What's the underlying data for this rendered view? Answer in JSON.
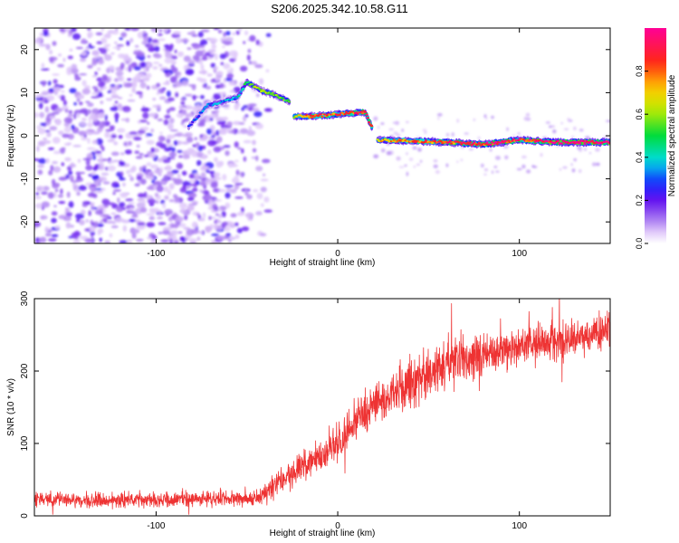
{
  "title": "S206.2025.342.10.58.G11",
  "chart_data": [
    {
      "type": "heatmap",
      "name": "spectrogram",
      "xlabel": "Height of straight line (km)",
      "ylabel": "Frequency (Hz)",
      "xlim": [
        -167,
        150
      ],
      "ylim": [
        -25,
        25
      ],
      "xticks": [
        -100,
        0,
        100
      ],
      "xtick_labels": [
        "-100",
        "0",
        "100"
      ],
      "yticks": [
        -20,
        -10,
        0,
        10,
        20
      ],
      "ytick_labels": [
        "-20",
        "-10",
        "0",
        "10",
        "20"
      ],
      "colorbar": {
        "label": "Normalized spectral amplitude",
        "range": [
          0,
          1
        ],
        "ticks": [
          0.0,
          0.2,
          0.4,
          0.6,
          0.8
        ],
        "tick_labels": [
          "0.0",
          "0.2",
          "0.4",
          "0.6",
          "0.8"
        ],
        "colormap": "rainbow"
      },
      "noise_region": {
        "x_range": [
          -167,
          -50
        ],
        "freq_range": [
          -25,
          25
        ],
        "amplitude_range": [
          0.05,
          0.25
        ]
      },
      "signal_track": [
        {
          "x": -82,
          "freq": 2,
          "amp": 0.2
        },
        {
          "x": -72,
          "freq": 7,
          "amp": 0.25
        },
        {
          "x": -62,
          "freq": 8,
          "amp": 0.3
        },
        {
          "x": -55,
          "freq": 9,
          "amp": 0.3
        },
        {
          "x": -50,
          "freq": 12.5,
          "amp": 0.45
        },
        {
          "x": -42,
          "freq": 10.5,
          "amp": 0.55
        },
        {
          "x": -35,
          "freq": 9.5,
          "amp": 0.5
        },
        {
          "x": -27,
          "freq": 8,
          "amp": 0.45
        },
        {
          "x": -24,
          "freq": 4.5,
          "amp": 0.6
        },
        {
          "x": -15,
          "freq": 4.5,
          "amp": 0.7
        },
        {
          "x": -5,
          "freq": 4.8,
          "amp": 0.75
        },
        {
          "x": 5,
          "freq": 5.2,
          "amp": 0.8
        },
        {
          "x": 15,
          "freq": 5.5,
          "amp": 0.85
        },
        {
          "x": 22,
          "freq": -1,
          "amp": 0.65
        },
        {
          "x": 40,
          "freq": -1.2,
          "amp": 0.7
        },
        {
          "x": 60,
          "freq": -1.5,
          "amp": 0.8
        },
        {
          "x": 80,
          "freq": -2,
          "amp": 0.85
        },
        {
          "x": 100,
          "freq": -1,
          "amp": 0.8
        },
        {
          "x": 120,
          "freq": -1.5,
          "amp": 0.9
        },
        {
          "x": 150,
          "freq": -1.5,
          "amp": 0.9
        }
      ]
    },
    {
      "type": "line",
      "name": "snr",
      "xlabel": "Height of straight line (km)",
      "ylabel": "SNR (10 * v/v)",
      "xlim": [
        -167,
        150
      ],
      "ylim": [
        0,
        300
      ],
      "xticks": [
        -100,
        0,
        100
      ],
      "xtick_labels": [
        "-100",
        "0",
        "100"
      ],
      "yticks": [
        0,
        100,
        200,
        300
      ],
      "ytick_labels": [
        "0",
        "100",
        "200",
        "300"
      ],
      "color": "#ee3333",
      "trend": {
        "x": [
          -167,
          -120,
          -80,
          -45,
          -35,
          -20,
          -10,
          0,
          10,
          20,
          30,
          40,
          50,
          60,
          80,
          100,
          120,
          150
        ],
        "mean": [
          22,
          22,
          23,
          24,
          40,
          65,
          85,
          100,
          130,
          155,
          170,
          185,
          195,
          215,
          220,
          235,
          240,
          255
        ],
        "spread": [
          15,
          15,
          15,
          15,
          25,
          30,
          35,
          40,
          45,
          45,
          45,
          45,
          45,
          50,
          45,
          40,
          40,
          40
        ]
      }
    }
  ]
}
